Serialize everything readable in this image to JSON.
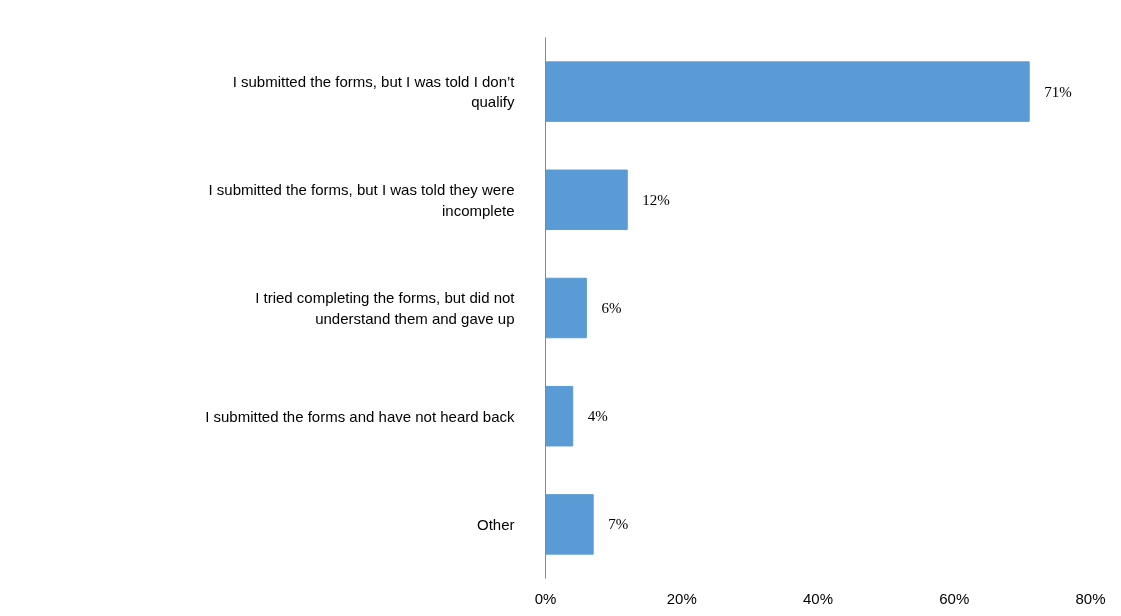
{
  "chart_data": {
    "type": "bar",
    "orientation": "horizontal",
    "categories": [
      "I submitted the forms, but I was told I don’t qualify",
      "I submitted the forms, but I was told they were incomplete",
      "I tried completing the forms, but did not understand them and gave up",
      "I submitted the forms and have not heard back",
      "Other"
    ],
    "values": [
      71,
      12,
      6,
      4,
      7
    ],
    "value_labels": [
      "71%",
      "12%",
      "6%",
      "4%",
      "7%"
    ],
    "color": "#5b9bd5",
    "xlim": [
      0,
      80
    ],
    "xticks": [
      {
        "value": 0,
        "label": "0%"
      },
      {
        "value": 20,
        "label": "20%"
      },
      {
        "value": 40,
        "label": "40%"
      },
      {
        "value": 60,
        "label": "60%"
      },
      {
        "value": 80,
        "label": "80%"
      }
    ],
    "grid": false
  }
}
